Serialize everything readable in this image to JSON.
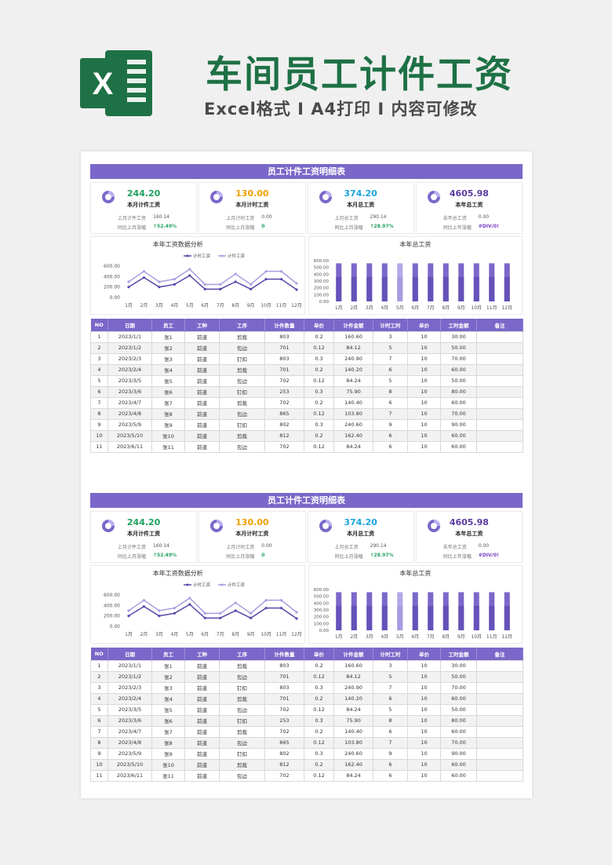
{
  "header": {
    "logo_letter": "X",
    "title": "车间员工计件工资",
    "subtitle": "Excel格式 I A4打印 I 内容可修改"
  },
  "sheet": {
    "title": "员工计件工资明细表",
    "stats": [
      {
        "value": "244.20",
        "label": "本月计件工资",
        "row1_label": "上月计件工资",
        "row1_value": "160.14",
        "row2_label": "同比上月涨幅",
        "row2_value": "↑52.49%",
        "color": "#1ea05e",
        "row2_class": "g"
      },
      {
        "value": "130.00",
        "label": "本月计时工资",
        "row1_label": "上月计时工资",
        "row1_value": "0.00",
        "row2_label": "同比上月涨幅",
        "row2_value": "0",
        "color": "#f0a000",
        "row2_class": "g"
      },
      {
        "value": "374.20",
        "label": "本月总工资",
        "row1_label": "上月总工资",
        "row1_value": "290.14",
        "row2_label": "同比上月涨幅",
        "row2_value": "↑28.97%",
        "color": "#1aa3e0",
        "row2_class": "g"
      },
      {
        "value": "4605.98",
        "label": "本年总工资",
        "row1_label": "去年总工资",
        "row1_value": "0.00",
        "row2_label": "同比上年涨幅",
        "row2_value": "#DIV/0!",
        "color": "#5b3aa0",
        "row2_class": "p"
      }
    ],
    "line_chart": {
      "title": "本年工资数据分析",
      "legend": [
        "计时工资",
        "计件工资"
      ],
      "yticks": [
        "600.00",
        "400.00",
        "200.00",
        "0.00"
      ],
      "colors": {
        "s1": "#5548a8",
        "s2": "#a99ee0"
      }
    },
    "bar_chart": {
      "title": "本年总工资",
      "yticks": [
        "600.00",
        "500.00",
        "400.00",
        "300.00",
        "200.00",
        "100.00",
        "0.00"
      ]
    },
    "table": {
      "headers": [
        "NO",
        "日期",
        "员工",
        "工种",
        "工序",
        "计件数量",
        "单价",
        "计件金额",
        "计时工时",
        "单价",
        "工时金额",
        "备注"
      ],
      "rows": [
        [
          "1",
          "2023/1/1",
          "张1",
          "前道",
          "剪裁",
          "803",
          "0.2",
          "160.60",
          "3",
          "10",
          "30.00",
          ""
        ],
        [
          "2",
          "2023/1/2",
          "张2",
          "前道",
          "包边",
          "701",
          "0.12",
          "84.12",
          "5",
          "10",
          "50.00",
          ""
        ],
        [
          "3",
          "2023/2/3",
          "张3",
          "前道",
          "钉扣",
          "803",
          "0.3",
          "240.90",
          "7",
          "10",
          "70.00",
          ""
        ],
        [
          "4",
          "2023/2/4",
          "张4",
          "前道",
          "剪裁",
          "701",
          "0.2",
          "140.20",
          "6",
          "10",
          "60.00",
          ""
        ],
        [
          "5",
          "2023/3/5",
          "张5",
          "前道",
          "包边",
          "702",
          "0.12",
          "84.24",
          "5",
          "10",
          "50.00",
          ""
        ],
        [
          "6",
          "2023/3/6",
          "张6",
          "前道",
          "钉扣",
          "253",
          "0.3",
          "75.90",
          "8",
          "10",
          "80.00",
          ""
        ],
        [
          "7",
          "2023/4/7",
          "张7",
          "前道",
          "剪裁",
          "702",
          "0.2",
          "140.40",
          "6",
          "10",
          "60.00",
          ""
        ],
        [
          "8",
          "2023/4/8",
          "张8",
          "前道",
          "包边",
          "865",
          "0.12",
          "103.80",
          "7",
          "10",
          "70.00",
          ""
        ],
        [
          "9",
          "2023/5/9",
          "张9",
          "前道",
          "钉扣",
          "802",
          "0.3",
          "240.60",
          "9",
          "10",
          "90.00",
          ""
        ],
        [
          "10",
          "2023/5/10",
          "张10",
          "前道",
          "剪裁",
          "812",
          "0.2",
          "162.40",
          "6",
          "10",
          "60.00",
          ""
        ],
        [
          "11",
          "2023/6/11",
          "张11",
          "前道",
          "包边",
          "702",
          "0.12",
          "84.24",
          "6",
          "10",
          "60.00",
          ""
        ]
      ]
    }
  },
  "chart_data": [
    {
      "type": "line",
      "title": "本年工资数据分析",
      "x": [
        "1月",
        "2月",
        "3月",
        "4月",
        "5月",
        "6月",
        "7月",
        "8月",
        "9月",
        "10月",
        "11月",
        "12月"
      ],
      "ylim": [
        0,
        600
      ],
      "series": [
        {
          "name": "计时工资",
          "values": [
            200,
            380,
            200,
            250,
            420,
            160,
            160,
            300,
            160,
            350,
            350,
            150
          ]
        },
        {
          "name": "计件工资",
          "values": [
            300,
            500,
            300,
            350,
            540,
            250,
            250,
            450,
            250,
            500,
            500,
            270
          ]
        }
      ]
    },
    {
      "type": "bar",
      "title": "本年总工资",
      "categories": [
        "1月",
        "2月",
        "3月",
        "4月",
        "5月",
        "6月",
        "7月",
        "8月",
        "9月",
        "10月",
        "11月",
        "12月"
      ],
      "ylim": [
        0,
        600
      ],
      "series": [
        {
          "values": [
            560,
            560,
            560,
            560,
            560,
            560,
            560,
            560,
            560,
            560,
            560,
            560
          ]
        },
        {
          "values": [
            360,
            360,
            360,
            360,
            360,
            360,
            360,
            360,
            360,
            360,
            360,
            360
          ]
        }
      ],
      "highlight_index": 4
    }
  ]
}
